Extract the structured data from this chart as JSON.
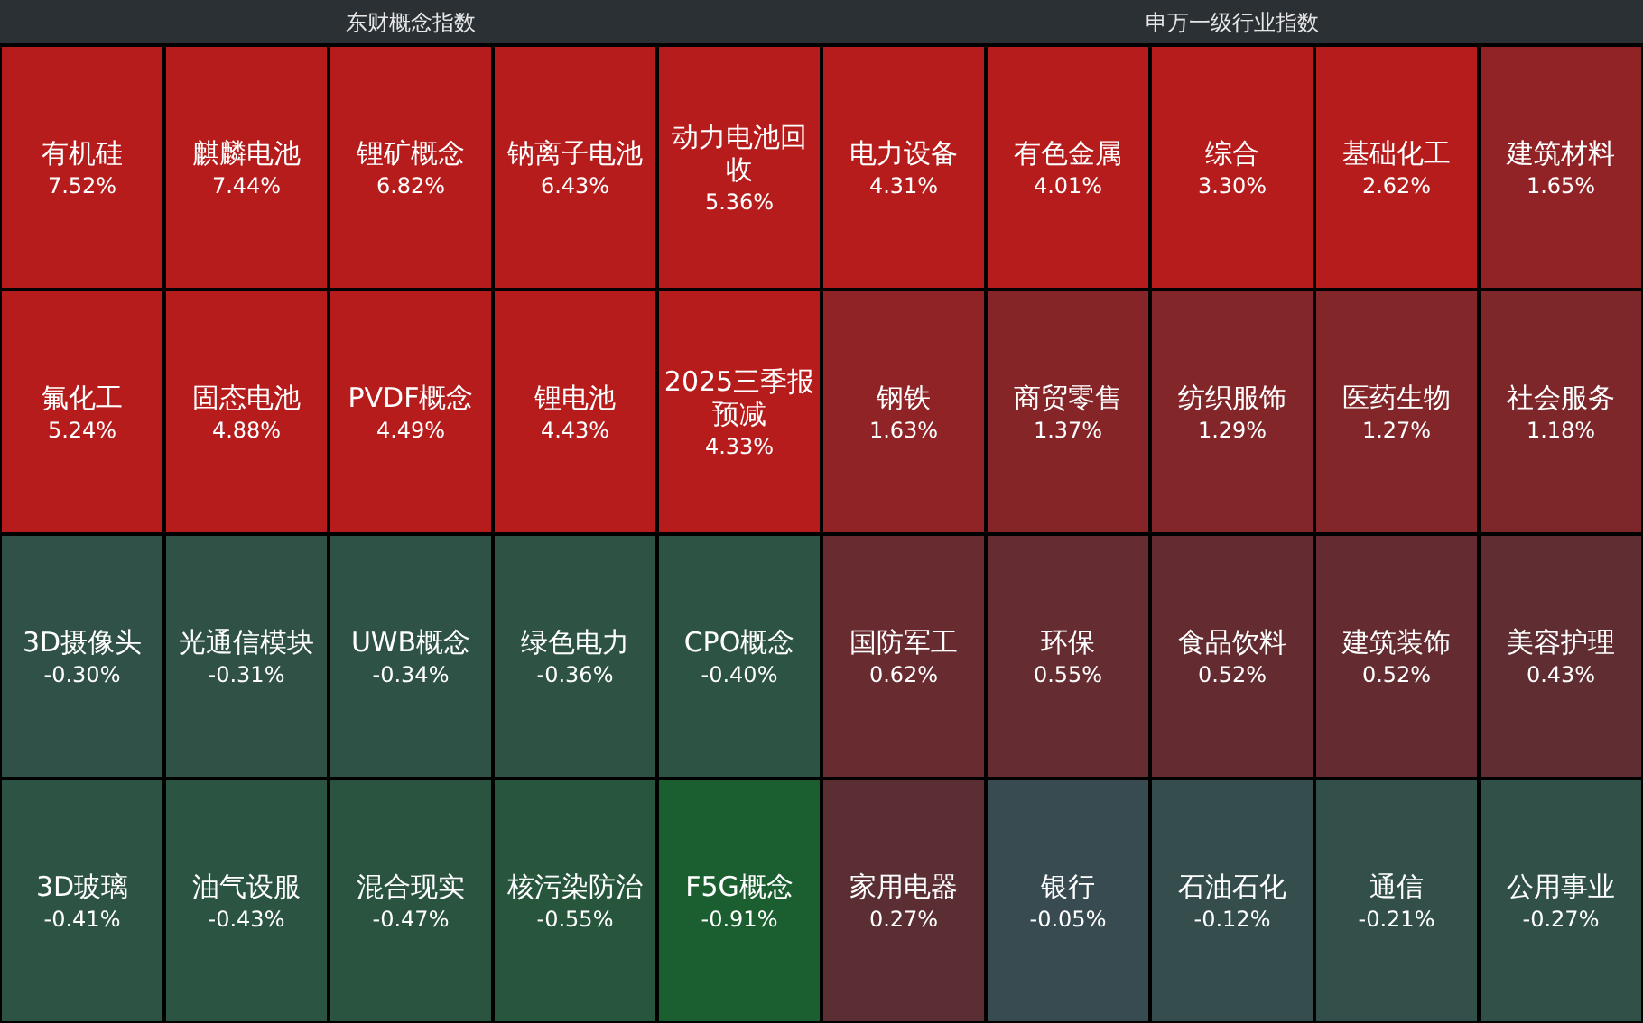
{
  "chart_data": [
    {
      "type": "other",
      "title": "东财概念指数",
      "categories": [
        "有机硅",
        "麒麟电池",
        "锂矿概念",
        "钠离子电池",
        "动力电池回收",
        "氟化工",
        "固态电池",
        "PVDF概念",
        "锂电池",
        "2025三季报预减",
        "3D摄像头",
        "光通信模块",
        "UWB概念",
        "绿色电力",
        "CPO概念",
        "3D玻璃",
        "油气设服",
        "混合现实",
        "核污染防治",
        "F5G概念"
      ],
      "values": [
        7.52,
        7.44,
        6.82,
        6.43,
        5.36,
        5.24,
        4.88,
        4.49,
        4.43,
        4.33,
        -0.3,
        -0.31,
        -0.34,
        -0.36,
        -0.4,
        -0.41,
        -0.43,
        -0.47,
        -0.55,
        -0.91
      ],
      "value_labels": [
        "7.52%",
        "7.44%",
        "6.82%",
        "6.43%",
        "5.36%",
        "5.24%",
        "4.88%",
        "4.49%",
        "4.43%",
        "4.33%",
        "-0.30%",
        "-0.31%",
        "-0.34%",
        "-0.36%",
        "-0.40%",
        "-0.41%",
        "-0.43%",
        "-0.47%",
        "-0.55%",
        "-0.91%"
      ]
    },
    {
      "type": "other",
      "title": "申万一级行业指数",
      "categories": [
        "电力设备",
        "有色金属",
        "综合",
        "基础化工",
        "建筑材料",
        "钢铁",
        "商贸零售",
        "纺织服饰",
        "医药生物",
        "社会服务",
        "国防军工",
        "环保",
        "食品饮料",
        "建筑装饰",
        "美容护理",
        "家用电器",
        "银行",
        "石油石化",
        "通信",
        "公用事业"
      ],
      "values": [
        4.31,
        4.01,
        3.3,
        2.62,
        1.65,
        1.63,
        1.37,
        1.29,
        1.27,
        1.18,
        0.62,
        0.55,
        0.52,
        0.52,
        0.43,
        0.27,
        -0.05,
        -0.12,
        -0.21,
        -0.27
      ],
      "value_labels": [
        "4.31%",
        "4.01%",
        "3.30%",
        "2.62%",
        "1.65%",
        "1.63%",
        "1.37%",
        "1.29%",
        "1.27%",
        "1.18%",
        "0.62%",
        "0.55%",
        "0.52%",
        "0.52%",
        "0.43%",
        "0.27%",
        "-0.05%",
        "-0.12%",
        "-0.21%",
        "-0.27%"
      ]
    }
  ]
}
